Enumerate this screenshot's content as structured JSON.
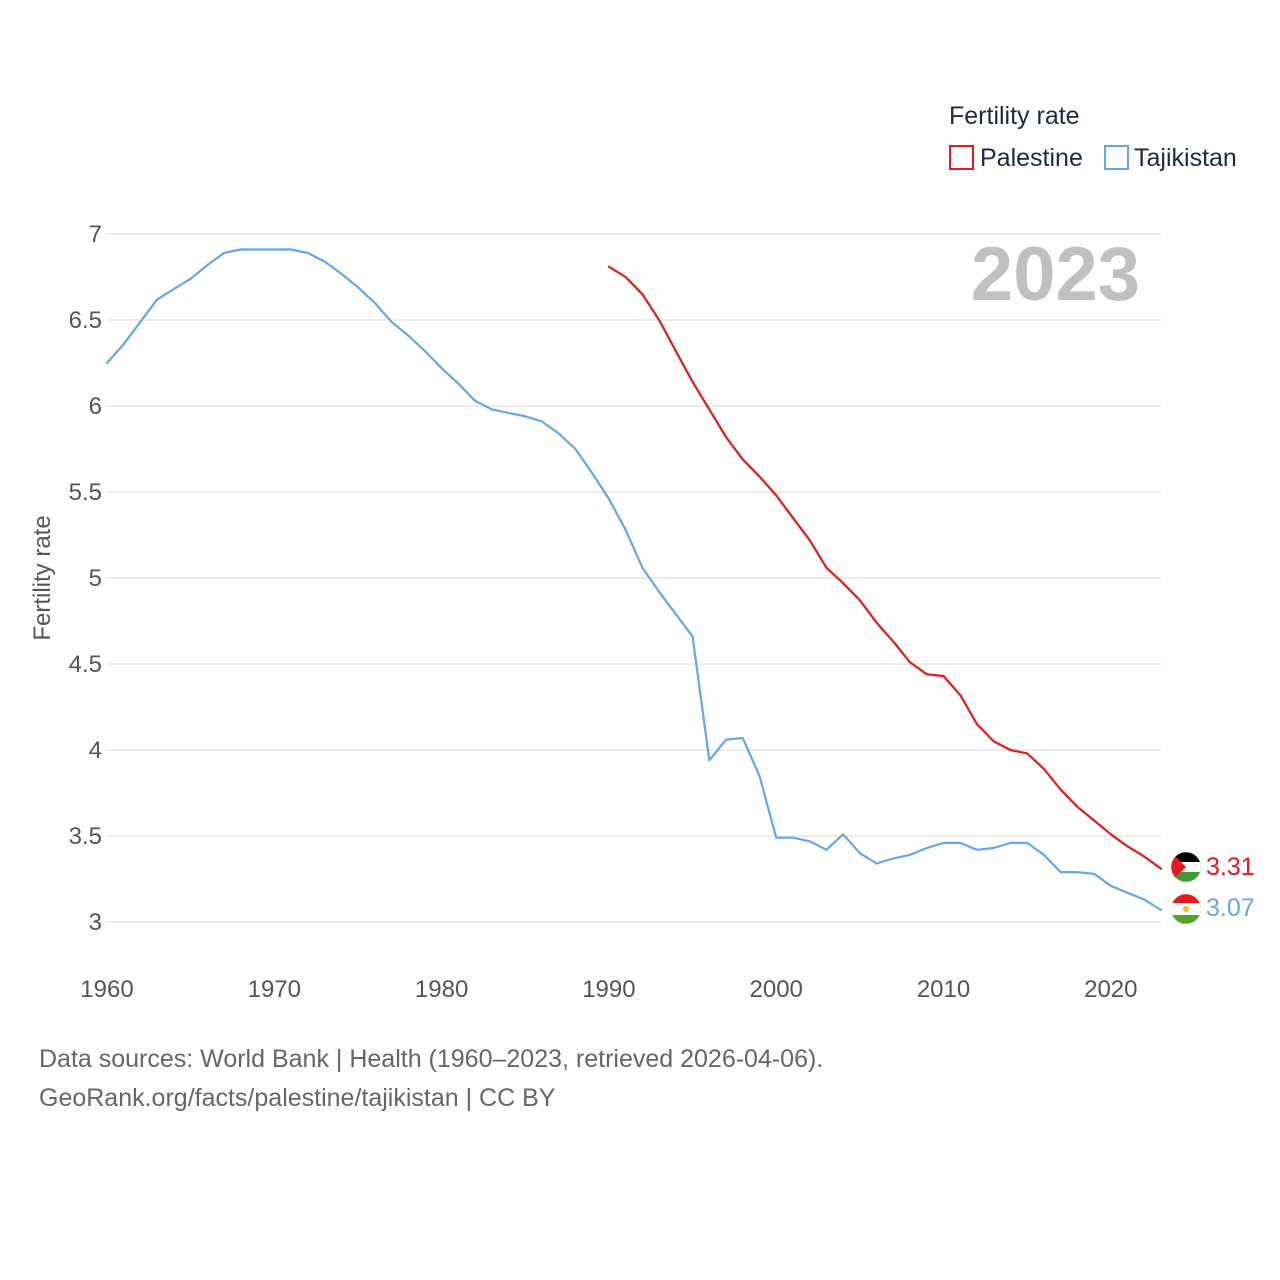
{
  "chart_data": {
    "type": "line",
    "title": "2023",
    "xlabel": "",
    "ylabel": "Fertility rate",
    "legend_title": "Fertility rate",
    "legend_position": "top-right",
    "xlim": [
      1960,
      2023
    ],
    "ylim": [
      3,
      7
    ],
    "x_ticks": [
      "1960",
      "1970",
      "1980",
      "1990",
      "2000",
      "2010",
      "2020"
    ],
    "y_ticks": [
      "3",
      "3.5",
      "4",
      "4.5",
      "5",
      "5.5",
      "6",
      "6.5",
      "7"
    ],
    "grid": true,
    "series": [
      {
        "name": "Palestine",
        "color": "#e8191c",
        "end_label": "3.31",
        "x": [
          1990,
          1991,
          1992,
          1993,
          1994,
          1995,
          1996,
          1997,
          1998,
          1999,
          2000,
          2001,
          2002,
          2003,
          2004,
          2005,
          2006,
          2007,
          2008,
          2009,
          2010,
          2011,
          2012,
          2013,
          2014,
          2015,
          2016,
          2017,
          2018,
          2019,
          2020,
          2021,
          2022,
          2023
        ],
        "values": [
          6.81,
          6.75,
          6.65,
          6.5,
          6.32,
          6.14,
          5.98,
          5.82,
          5.69,
          5.59,
          5.48,
          5.35,
          5.22,
          5.06,
          4.97,
          4.87,
          4.74,
          4.63,
          4.51,
          4.44,
          4.43,
          4.32,
          4.15,
          4.05,
          4.0,
          3.98,
          3.89,
          3.77,
          3.67,
          3.59,
          3.51,
          3.44,
          3.38,
          3.31
        ]
      },
      {
        "name": "Tajikistan",
        "color": "#62a8e5",
        "end_label": "3.07",
        "x": [
          1960,
          1961,
          1962,
          1963,
          1964,
          1965,
          1966,
          1967,
          1968,
          1969,
          1970,
          1971,
          1972,
          1973,
          1974,
          1975,
          1976,
          1977,
          1978,
          1979,
          1980,
          1981,
          1982,
          1983,
          1984,
          1985,
          1986,
          1987,
          1988,
          1989,
          1990,
          1991,
          1992,
          1993,
          1994,
          1995,
          1996,
          1997,
          1998,
          1999,
          2000,
          2001,
          2002,
          2003,
          2004,
          2005,
          2006,
          2007,
          2008,
          2009,
          2010,
          2011,
          2012,
          2013,
          2014,
          2015,
          2016,
          2017,
          2018,
          2019,
          2020,
          2021,
          2022,
          2023
        ],
        "values": [
          6.25,
          6.36,
          6.49,
          6.62,
          6.68,
          6.74,
          6.82,
          6.89,
          6.91,
          6.91,
          6.91,
          6.91,
          6.89,
          6.84,
          6.77,
          6.69,
          6.6,
          6.49,
          6.41,
          6.32,
          6.22,
          6.13,
          6.03,
          5.98,
          5.96,
          5.94,
          5.91,
          5.84,
          5.75,
          5.61,
          5.46,
          5.28,
          5.06,
          4.92,
          4.79,
          4.66,
          3.94,
          4.06,
          4.07,
          3.85,
          3.49,
          3.49,
          3.47,
          3.42,
          3.51,
          3.4,
          3.34,
          3.37,
          3.39,
          3.43,
          3.46,
          3.46,
          3.42,
          3.43,
          3.46,
          3.46,
          3.39,
          3.29,
          3.29,
          3.28,
          3.21,
          3.17,
          3.13,
          3.07
        ]
      }
    ]
  },
  "footer": {
    "line1": "Data sources: World Bank | Health (1960–2023, retrieved 2026-04-06).",
    "line2": "GeoRank.org/facts/palestine/tajikistan | CC BY"
  },
  "colors": {
    "grid": "#e6e6e6",
    "tick_text": "#555555",
    "legend_text": "#1d2a44",
    "year_text": "#c0c0c0",
    "flag_black": "#000000",
    "flag_green": "#3f9c35",
    "flag_red": "#e8191c",
    "tj_red": "#e8191c",
    "tj_green": "#56a32a",
    "tj_crown": "#f2c018"
  }
}
